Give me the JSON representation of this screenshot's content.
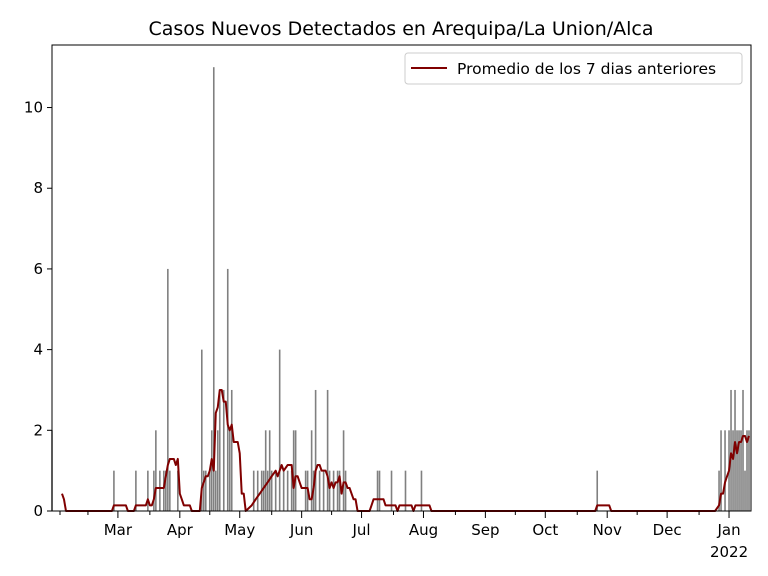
{
  "chart_data": {
    "type": "bar",
    "title": "Casos Nuevos Detectados en Arequipa/La Union/Alca",
    "xlabel": "",
    "ylabel": "",
    "x_range": [
      "2021-02-11",
      "2022-01-27"
    ],
    "ylim": [
      0,
      11.55
    ],
    "yticks": [
      0,
      2,
      4,
      6,
      8,
      10
    ],
    "xticks": [
      {
        "date": "2021-03-01",
        "label": "Mar"
      },
      {
        "date": "2021-04-01",
        "label": "Apr"
      },
      {
        "date": "2021-05-01",
        "label": "May"
      },
      {
        "date": "2021-06-01",
        "label": "Jun"
      },
      {
        "date": "2021-07-01",
        "label": "Jul"
      },
      {
        "date": "2021-08-01",
        "label": "Aug"
      },
      {
        "date": "2021-09-01",
        "label": "Sep"
      },
      {
        "date": "2021-10-01",
        "label": "Oct"
      },
      {
        "date": "2021-11-01",
        "label": "Nov"
      },
      {
        "date": "2021-12-01",
        "label": "Dec"
      },
      {
        "date": "2022-01-01",
        "label": "Jan",
        "sublabel": "2022"
      }
    ],
    "grid": false,
    "legend": {
      "position": "top-right",
      "entries": [
        "Promedio de los 7 dias anteriores"
      ]
    },
    "colors": {
      "bars": "#808080",
      "line": "#800000"
    },
    "daily_cases": [
      [
        "2021-02-11",
        2
      ],
      [
        "2021-03-14",
        1
      ],
      [
        "2021-03-25",
        1
      ],
      [
        "2021-03-31",
        1
      ],
      [
        "2021-04-03",
        1
      ],
      [
        "2021-04-04",
        2
      ],
      [
        "2021-04-06",
        1
      ],
      [
        "2021-04-08",
        1
      ],
      [
        "2021-04-09",
        1
      ],
      [
        "2021-04-10",
        6
      ],
      [
        "2021-04-11",
        1
      ],
      [
        "2021-04-15",
        1
      ],
      [
        "2021-04-27",
        4
      ],
      [
        "2021-04-28",
        1
      ],
      [
        "2021-04-29",
        1
      ],
      [
        "2021-05-01",
        1
      ],
      [
        "2021-05-02",
        2
      ],
      [
        "2021-05-03",
        11
      ],
      [
        "2021-05-04",
        1
      ],
      [
        "2021-05-05",
        2
      ],
      [
        "2021-05-06",
        3
      ],
      [
        "2021-05-08",
        3
      ],
      [
        "2021-05-10",
        6
      ],
      [
        "2021-05-11",
        2
      ],
      [
        "2021-05-12",
        3
      ],
      [
        "2021-05-23",
        1
      ],
      [
        "2021-05-25",
        1
      ],
      [
        "2021-05-27",
        1
      ],
      [
        "2021-05-28",
        1
      ],
      [
        "2021-05-29",
        2
      ],
      [
        "2021-05-30",
        1
      ],
      [
        "2021-05-31",
        2
      ],
      [
        "2021-06-01",
        1
      ],
      [
        "2021-06-03",
        1
      ],
      [
        "2021-06-05",
        4
      ],
      [
        "2021-06-07",
        1
      ],
      [
        "2021-06-09",
        1
      ],
      [
        "2021-06-11",
        1
      ],
      [
        "2021-06-12",
        2
      ],
      [
        "2021-06-13",
        2
      ],
      [
        "2021-06-18",
        1
      ],
      [
        "2021-06-19",
        1
      ],
      [
        "2021-06-21",
        2
      ],
      [
        "2021-06-22",
        1
      ],
      [
        "2021-06-23",
        3
      ],
      [
        "2021-06-25",
        1
      ],
      [
        "2021-06-27",
        1
      ],
      [
        "2021-06-29",
        3
      ],
      [
        "2021-06-30",
        1
      ],
      [
        "2021-07-02",
        1
      ],
      [
        "2021-07-04",
        1
      ],
      [
        "2021-07-05",
        1
      ],
      [
        "2021-07-07",
        2
      ],
      [
        "2021-07-08",
        1
      ],
      [
        "2021-07-24",
        1
      ],
      [
        "2021-07-25",
        1
      ],
      [
        "2021-07-31",
        1
      ],
      [
        "2021-08-07",
        1
      ],
      [
        "2021-08-15",
        1
      ],
      [
        "2021-11-11",
        1
      ],
      [
        "2022-01-11",
        1
      ],
      [
        "2022-01-12",
        2
      ],
      [
        "2022-01-14",
        2
      ],
      [
        "2022-01-16",
        2
      ],
      [
        "2022-01-17",
        3
      ],
      [
        "2022-01-18",
        2
      ],
      [
        "2022-01-19",
        3
      ],
      [
        "2022-01-20",
        2
      ],
      [
        "2022-01-21",
        2
      ],
      [
        "2022-01-22",
        2
      ],
      [
        "2022-01-23",
        3
      ],
      [
        "2022-01-24",
        1
      ],
      [
        "2022-01-25",
        2
      ],
      [
        "2022-01-26",
        2
      ]
    ],
    "series": [
      {
        "name": "Promedio de los 7 dias anteriores",
        "points": [
          [
            "2021-02-16",
            0.43
          ],
          [
            "2021-02-17",
            0.29
          ],
          [
            "2021-02-18",
            0.0
          ],
          [
            "2021-03-13",
            0.0
          ],
          [
            "2021-03-14",
            0.14
          ],
          [
            "2021-03-20",
            0.14
          ],
          [
            "2021-03-21",
            0.0
          ],
          [
            "2021-03-24",
            0.0
          ],
          [
            "2021-03-25",
            0.14
          ],
          [
            "2021-03-30",
            0.14
          ],
          [
            "2021-03-31",
            0.29
          ],
          [
            "2021-04-01",
            0.14
          ],
          [
            "2021-04-02",
            0.14
          ],
          [
            "2021-04-03",
            0.29
          ],
          [
            "2021-04-04",
            0.57
          ],
          [
            "2021-04-06",
            0.57
          ],
          [
            "2021-04-08",
            0.57
          ],
          [
            "2021-04-09",
            0.86
          ],
          [
            "2021-04-10",
            1.14
          ],
          [
            "2021-04-11",
            1.29
          ],
          [
            "2021-04-12",
            1.29
          ],
          [
            "2021-04-13",
            1.29
          ],
          [
            "2021-04-14",
            1.14
          ],
          [
            "2021-04-15",
            1.29
          ],
          [
            "2021-04-16",
            0.43
          ],
          [
            "2021-04-17",
            0.29
          ],
          [
            "2021-04-18",
            0.14
          ],
          [
            "2021-04-21",
            0.14
          ],
          [
            "2021-04-22",
            0.0
          ],
          [
            "2021-04-26",
            0.0
          ],
          [
            "2021-04-27",
            0.57
          ],
          [
            "2021-04-28",
            0.71
          ],
          [
            "2021-04-29",
            0.86
          ],
          [
            "2021-04-30",
            0.86
          ],
          [
            "2021-05-01",
            1.0
          ],
          [
            "2021-05-02",
            1.29
          ],
          [
            "2021-05-03",
            1.0
          ],
          [
            "2021-05-04",
            2.43
          ],
          [
            "2021-05-05",
            2.57
          ],
          [
            "2021-05-06",
            3.0
          ],
          [
            "2021-05-07",
            3.0
          ],
          [
            "2021-05-08",
            2.71
          ],
          [
            "2021-05-09",
            2.71
          ],
          [
            "2021-05-10",
            2.14
          ],
          [
            "2021-05-11",
            2.0
          ],
          [
            "2021-05-12",
            2.14
          ],
          [
            "2021-05-13",
            1.71
          ],
          [
            "2021-05-15",
            1.71
          ],
          [
            "2021-05-16",
            1.43
          ],
          [
            "2021-05-17",
            0.43
          ],
          [
            "2021-05-18",
            0.43
          ],
          [
            "2021-05-19",
            0.0
          ],
          [
            "2021-05-22",
            0.14
          ],
          [
            "2021-05-24",
            0.29
          ],
          [
            "2021-05-26",
            0.43
          ],
          [
            "2021-05-28",
            0.57
          ],
          [
            "2021-05-30",
            0.71
          ],
          [
            "2021-06-01",
            0.86
          ],
          [
            "2021-06-03",
            1.0
          ],
          [
            "2021-06-04",
            0.86
          ],
          [
            "2021-06-06",
            1.14
          ],
          [
            "2021-06-07",
            1.0
          ],
          [
            "2021-06-09",
            1.14
          ],
          [
            "2021-06-11",
            1.14
          ],
          [
            "2021-06-12",
            0.57
          ],
          [
            "2021-06-13",
            0.86
          ],
          [
            "2021-06-14",
            0.86
          ],
          [
            "2021-06-15",
            0.71
          ],
          [
            "2021-06-16",
            0.57
          ],
          [
            "2021-06-18",
            0.57
          ],
          [
            "2021-06-19",
            0.57
          ],
          [
            "2021-06-20",
            0.29
          ],
          [
            "2021-06-21",
            0.29
          ],
          [
            "2021-06-22",
            0.57
          ],
          [
            "2021-06-23",
            1.0
          ],
          [
            "2021-06-24",
            1.14
          ],
          [
            "2021-06-25",
            1.14
          ],
          [
            "2021-06-26",
            1.0
          ],
          [
            "2021-06-27",
            1.0
          ],
          [
            "2021-06-28",
            1.0
          ],
          [
            "2021-06-29",
            0.86
          ],
          [
            "2021-06-30",
            0.57
          ],
          [
            "2021-07-01",
            0.71
          ],
          [
            "2021-07-02",
            0.57
          ],
          [
            "2021-07-03",
            0.71
          ],
          [
            "2021-07-04",
            0.71
          ],
          [
            "2021-07-05",
            0.86
          ],
          [
            "2021-07-06",
            0.43
          ],
          [
            "2021-07-07",
            0.71
          ],
          [
            "2021-07-08",
            0.71
          ],
          [
            "2021-07-09",
            0.57
          ],
          [
            "2021-07-10",
            0.57
          ],
          [
            "2021-07-11",
            0.43
          ],
          [
            "2021-07-12",
            0.29
          ],
          [
            "2021-07-13",
            0.29
          ],
          [
            "2021-07-14",
            0.0
          ],
          [
            "2021-07-20",
            0.0
          ],
          [
            "2021-07-21",
            0.14
          ],
          [
            "2021-07-22",
            0.29
          ],
          [
            "2021-07-27",
            0.29
          ],
          [
            "2021-07-28",
            0.14
          ],
          [
            "2021-08-02",
            0.14
          ],
          [
            "2021-08-03",
            0.0
          ],
          [
            "2021-08-04",
            0.14
          ],
          [
            "2021-08-10",
            0.14
          ],
          [
            "2021-08-11",
            0.0
          ],
          [
            "2021-08-12",
            0.14
          ],
          [
            "2021-08-19",
            0.14
          ],
          [
            "2021-08-20",
            0.0
          ],
          [
            "2021-11-10",
            0.0
          ],
          [
            "2021-11-11",
            0.14
          ],
          [
            "2021-11-17",
            0.14
          ],
          [
            "2021-11-18",
            0.0
          ],
          [
            "2022-01-09",
            0.0
          ],
          [
            "2022-01-11",
            0.14
          ],
          [
            "2022-01-12",
            0.43
          ],
          [
            "2022-01-13",
            0.43
          ],
          [
            "2022-01-14",
            0.71
          ],
          [
            "2022-01-15",
            0.86
          ],
          [
            "2022-01-16",
            1.0
          ],
          [
            "2022-01-17",
            1.43
          ],
          [
            "2022-01-18",
            1.29
          ],
          [
            "2022-01-19",
            1.71
          ],
          [
            "2022-01-20",
            1.43
          ],
          [
            "2022-01-21",
            1.71
          ],
          [
            "2022-01-22",
            1.71
          ],
          [
            "2022-01-23",
            1.86
          ],
          [
            "2022-01-24",
            1.86
          ],
          [
            "2022-01-25",
            1.71
          ],
          [
            "2022-01-26",
            1.86
          ]
        ]
      }
    ]
  }
}
